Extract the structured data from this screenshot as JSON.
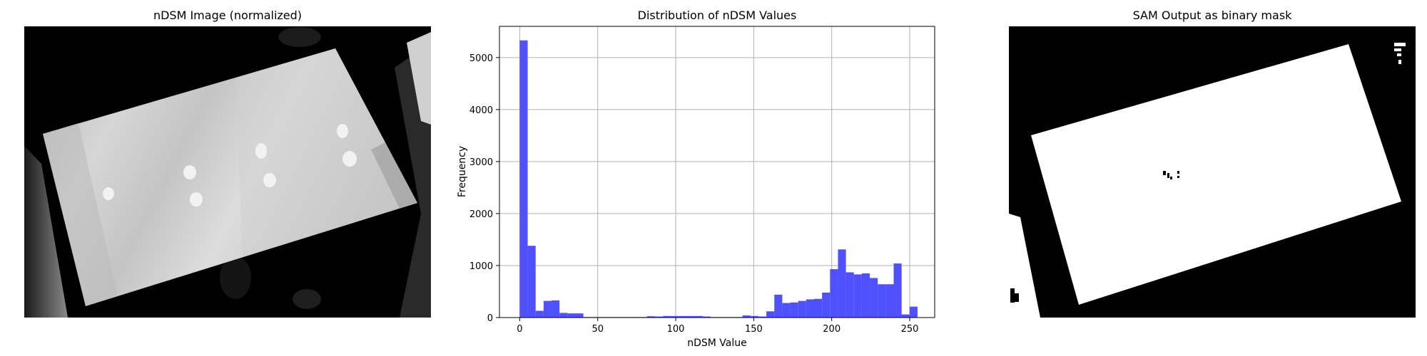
{
  "panels": {
    "left_title": "nDSM Image (normalized)",
    "right_title": "SAM Output as binary mask"
  },
  "chart_data": {
    "type": "bar",
    "title": "Distribution of nDSM Values",
    "xlabel": "nDSM Value",
    "ylabel": "Frequency",
    "xlim": [
      -13,
      266
    ],
    "ylim": [
      0,
      5600
    ],
    "xticks": [
      0,
      50,
      100,
      150,
      200,
      250
    ],
    "yticks": [
      0,
      1000,
      2000,
      3000,
      4000,
      5000
    ],
    "grid": true,
    "color": "#4d4dff",
    "bin_width": 5.1,
    "bin_start": 0,
    "values": [
      5330,
      1380,
      130,
      320,
      330,
      90,
      80,
      80,
      10,
      10,
      10,
      10,
      10,
      10,
      10,
      10,
      25,
      20,
      30,
      30,
      30,
      30,
      30,
      20,
      10,
      10,
      10,
      10,
      40,
      30,
      20,
      120,
      440,
      280,
      290,
      320,
      350,
      360,
      480,
      930,
      1310,
      870,
      830,
      850,
      760,
      640,
      640,
      1040,
      60,
      210
    ]
  }
}
